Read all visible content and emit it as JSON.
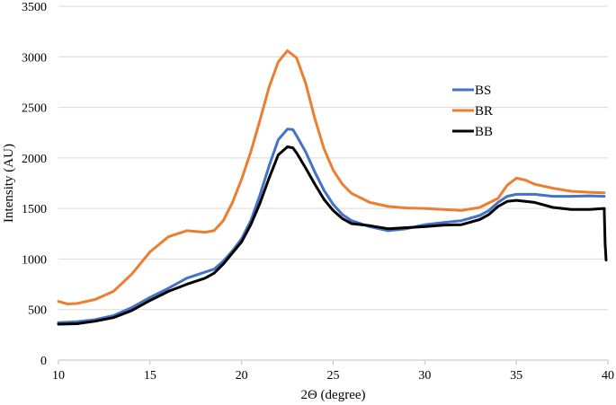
{
  "chart_data": {
    "type": "line",
    "title": "",
    "xlabel": "2Θ (degree)",
    "ylabel": "Intensity (AU)",
    "xlim": [
      10,
      40
    ],
    "ylim": [
      0,
      3500
    ],
    "x_ticks": [
      10,
      15,
      20,
      25,
      30,
      35,
      40
    ],
    "y_ticks": [
      0,
      500,
      1000,
      1500,
      2000,
      2500,
      3000,
      3500
    ],
    "grid": "horizontal",
    "legend_position": "upper-right-inside",
    "series": [
      {
        "name": "BS",
        "color": "#4472C4",
        "points": [
          [
            10,
            370
          ],
          [
            11,
            380
          ],
          [
            12,
            400
          ],
          [
            13,
            440
          ],
          [
            14,
            520
          ],
          [
            15,
            620
          ],
          [
            16,
            710
          ],
          [
            17,
            810
          ],
          [
            18,
            870
          ],
          [
            18.5,
            900
          ],
          [
            19,
            980
          ],
          [
            19.5,
            1080
          ],
          [
            20,
            1200
          ],
          [
            20.5,
            1380
          ],
          [
            21,
            1630
          ],
          [
            21.5,
            1920
          ],
          [
            22,
            2180
          ],
          [
            22.5,
            2285
          ],
          [
            22.8,
            2280
          ],
          [
            23,
            2220
          ],
          [
            23.5,
            2060
          ],
          [
            24,
            1860
          ],
          [
            24.5,
            1680
          ],
          [
            25,
            1540
          ],
          [
            25.5,
            1440
          ],
          [
            26,
            1380
          ],
          [
            27,
            1320
          ],
          [
            28,
            1280
          ],
          [
            29,
            1300
          ],
          [
            30,
            1340
          ],
          [
            31,
            1360
          ],
          [
            32,
            1380
          ],
          [
            33,
            1430
          ],
          [
            33.5,
            1480
          ],
          [
            34,
            1560
          ],
          [
            34.5,
            1620
          ],
          [
            35,
            1640
          ],
          [
            36,
            1640
          ],
          [
            37,
            1620
          ],
          [
            38,
            1620
          ],
          [
            39,
            1625
          ],
          [
            39.8,
            1620
          ]
        ]
      },
      {
        "name": "BR",
        "color": "#ED7D31",
        "points": [
          [
            10,
            580
          ],
          [
            10.5,
            555
          ],
          [
            11,
            560
          ],
          [
            12,
            600
          ],
          [
            13,
            680
          ],
          [
            14,
            850
          ],
          [
            15,
            1070
          ],
          [
            16,
            1220
          ],
          [
            17,
            1280
          ],
          [
            18,
            1265
          ],
          [
            18.5,
            1280
          ],
          [
            19,
            1380
          ],
          [
            19.5,
            1560
          ],
          [
            20,
            1790
          ],
          [
            20.5,
            2060
          ],
          [
            21,
            2370
          ],
          [
            21.5,
            2700
          ],
          [
            22,
            2950
          ],
          [
            22.5,
            3060
          ],
          [
            23,
            2990
          ],
          [
            23.5,
            2740
          ],
          [
            24,
            2390
          ],
          [
            24.5,
            2090
          ],
          [
            25,
            1880
          ],
          [
            25.5,
            1740
          ],
          [
            26,
            1650
          ],
          [
            27,
            1560
          ],
          [
            28,
            1520
          ],
          [
            29,
            1505
          ],
          [
            30,
            1500
          ],
          [
            31,
            1490
          ],
          [
            32,
            1480
          ],
          [
            33,
            1510
          ],
          [
            34,
            1600
          ],
          [
            34.5,
            1730
          ],
          [
            35,
            1800
          ],
          [
            35.5,
            1780
          ],
          [
            36,
            1740
          ],
          [
            37,
            1700
          ],
          [
            38,
            1670
          ],
          [
            39,
            1660
          ],
          [
            39.8,
            1655
          ]
        ]
      },
      {
        "name": "BB",
        "color": "#000000",
        "points": [
          [
            10,
            355
          ],
          [
            11,
            360
          ],
          [
            12,
            385
          ],
          [
            13,
            420
          ],
          [
            14,
            490
          ],
          [
            15,
            590
          ],
          [
            16,
            680
          ],
          [
            17,
            750
          ],
          [
            18,
            810
          ],
          [
            18.5,
            860
          ],
          [
            19,
            950
          ],
          [
            19.5,
            1060
          ],
          [
            20,
            1170
          ],
          [
            20.5,
            1340
          ],
          [
            21,
            1550
          ],
          [
            21.5,
            1800
          ],
          [
            22,
            2030
          ],
          [
            22.5,
            2110
          ],
          [
            22.8,
            2100
          ],
          [
            23,
            2050
          ],
          [
            23.5,
            1900
          ],
          [
            24,
            1740
          ],
          [
            24.5,
            1590
          ],
          [
            25,
            1480
          ],
          [
            25.5,
            1400
          ],
          [
            26,
            1350
          ],
          [
            27,
            1330
          ],
          [
            28,
            1300
          ],
          [
            29,
            1310
          ],
          [
            30,
            1320
          ],
          [
            31,
            1335
          ],
          [
            32,
            1340
          ],
          [
            33,
            1390
          ],
          [
            33.5,
            1440
          ],
          [
            34,
            1520
          ],
          [
            34.5,
            1570
          ],
          [
            35,
            1580
          ],
          [
            36,
            1560
          ],
          [
            37,
            1510
          ],
          [
            38,
            1490
          ],
          [
            39,
            1490
          ],
          [
            39.8,
            1500
          ],
          [
            39.85,
            1150
          ],
          [
            39.9,
            990
          ]
        ]
      }
    ]
  }
}
